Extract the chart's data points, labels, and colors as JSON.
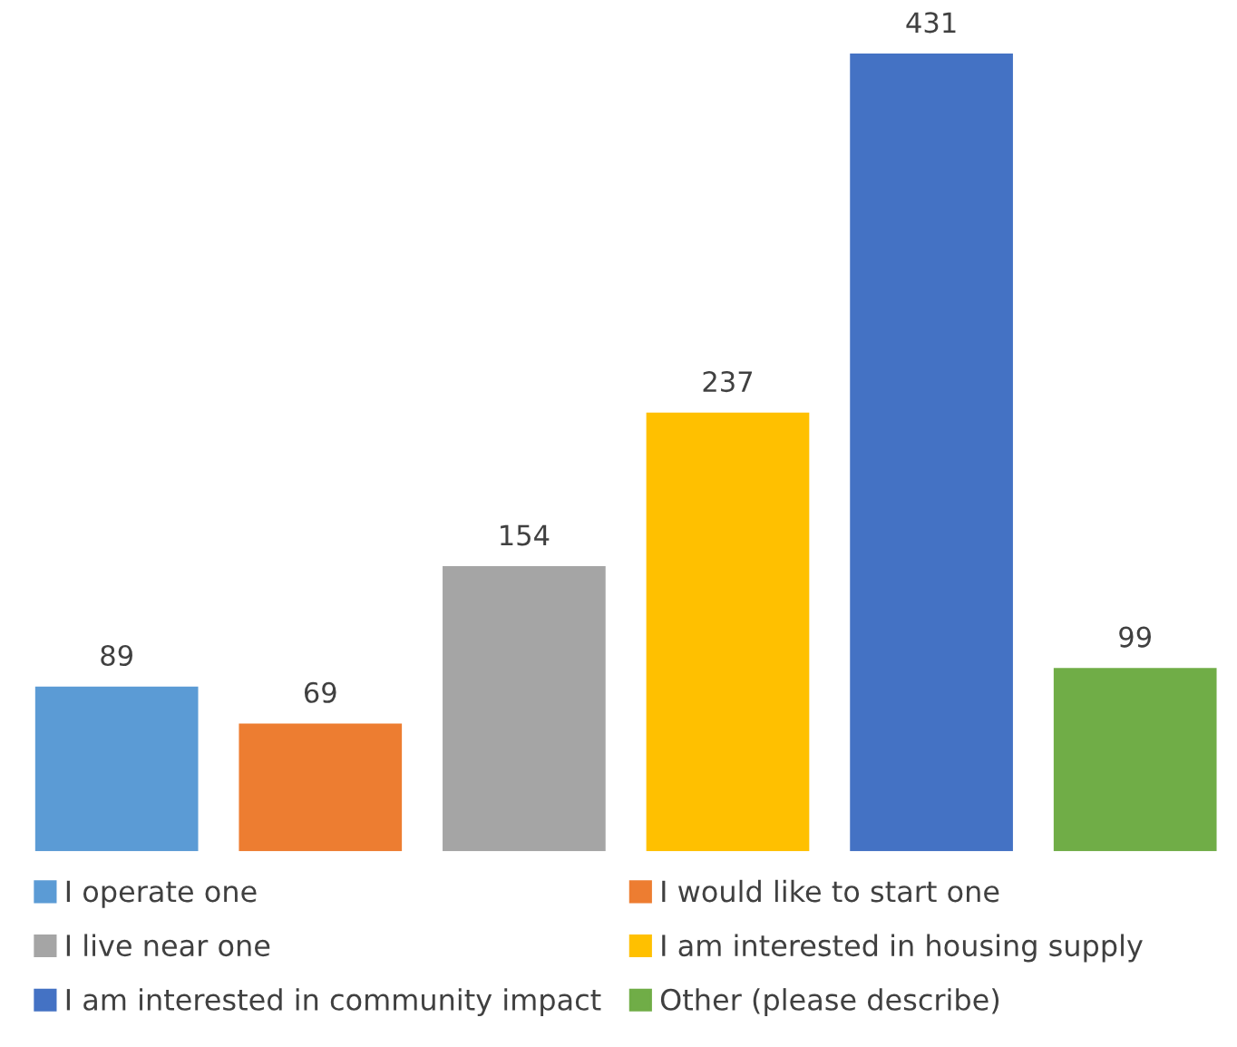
{
  "chart_data": {
    "type": "bar",
    "categories": [
      null
    ],
    "data_labels": true,
    "legend": "bottom",
    "series": [
      {
        "name": "I operate one",
        "color": "#5b9bd5",
        "values": [
          89
        ]
      },
      {
        "name": "I would like to start one",
        "color": "#ed7d31",
        "values": [
          69
        ]
      },
      {
        "name": "I live near one",
        "color": "#a5a5a5",
        "values": [
          154
        ]
      },
      {
        "name": "I am interested in housing supply",
        "color": "#ffc000",
        "values": [
          237
        ]
      },
      {
        "name": "I am interested in community impact",
        "color": "#4472c4",
        "values": [
          431
        ]
      },
      {
        "name": "Other (please describe)",
        "color": "#70ad47",
        "values": [
          99
        ]
      }
    ]
  }
}
